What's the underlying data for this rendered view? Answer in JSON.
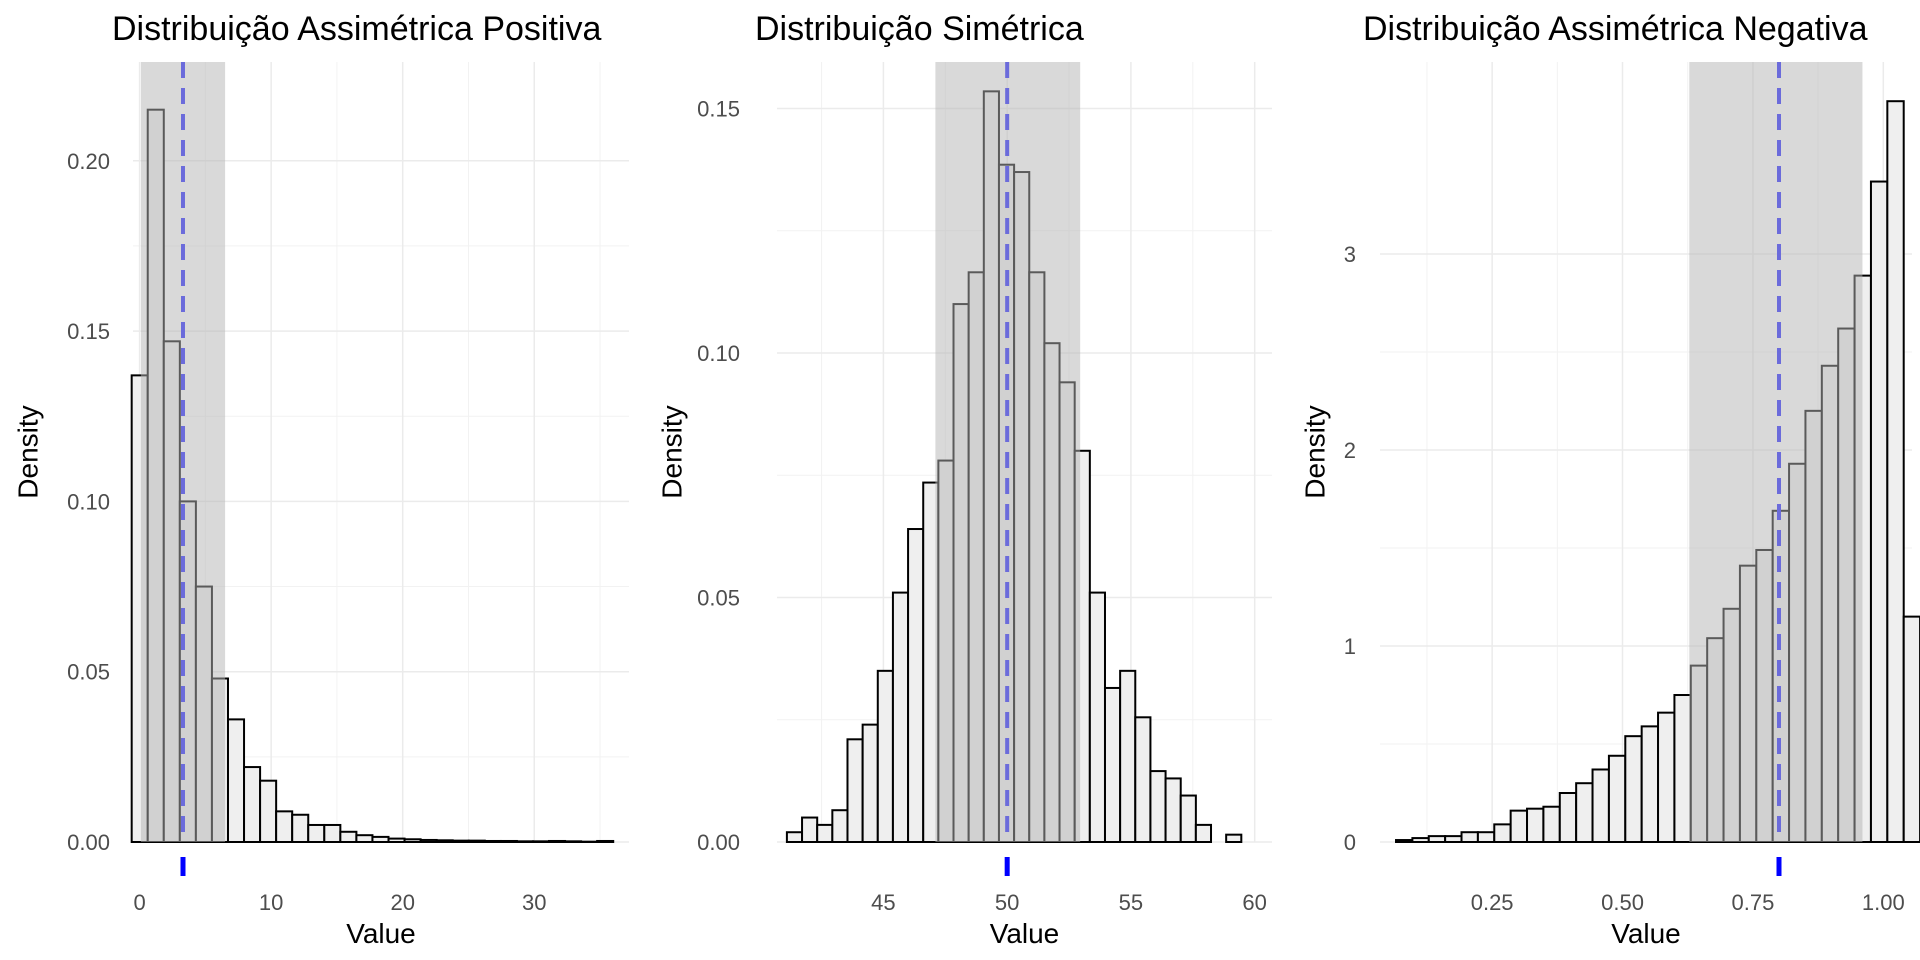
{
  "chart_data": [
    {
      "type": "bar",
      "title": "Distribuição Assimétrica Positiva",
      "xlabel": "Value",
      "ylabel": "Density",
      "xlim": [
        -0.5,
        37.2
      ],
      "ylim": [
        0,
        0.229
      ],
      "x_ticks": [
        {
          "v": 0,
          "label": "0"
        },
        {
          "v": 10,
          "label": "10"
        },
        {
          "v": 20,
          "label": "20"
        },
        {
          "v": 30,
          "label": "30"
        }
      ],
      "y_ticks": [
        {
          "v": 0,
          "label": "0.00"
        },
        {
          "v": 0.05,
          "label": "0.05"
        },
        {
          "v": 0.1,
          "label": "0.10"
        },
        {
          "v": 0.15,
          "label": "0.15"
        },
        {
          "v": 0.2,
          "label": "0.20"
        }
      ],
      "bin_start": -0.6,
      "bin_width": 1.22,
      "values": [
        0.137,
        0.215,
        0.147,
        0.1,
        0.075,
        0.048,
        0.036,
        0.022,
        0.018,
        0.009,
        0.008,
        0.005,
        0.005,
        0.003,
        0.002,
        0.0015,
        0.001,
        0.0008,
        0.0006,
        0.0005,
        0.0004,
        0.0004,
        0.0003,
        0.0003,
        0.0002,
        0.0002,
        0.0003,
        0.0002,
        0.0001,
        0.0003
      ],
      "shade_range": [
        0.1,
        6.5
      ],
      "mean_line": 3.3,
      "grid": true,
      "colors": {
        "bar_fill": "#efefef",
        "bar_stroke": "#000000",
        "shade": "#d9d9d9",
        "mean": "#6b6bdb",
        "rug": "#0000ff"
      }
    },
    {
      "type": "bar",
      "title": "Distribuição Simétrica",
      "xlabel": "Value",
      "ylabel": "Density",
      "xlim": [
        40.7,
        60.7
      ],
      "ylim": [
        0,
        0.1595
      ],
      "x_ticks": [
        {
          "v": 45,
          "label": "45"
        },
        {
          "v": 50,
          "label": "50"
        },
        {
          "v": 55,
          "label": "55"
        },
        {
          "v": 60,
          "label": "60"
        }
      ],
      "y_ticks": [
        {
          "v": 0,
          "label": "0.00"
        },
        {
          "v": 0.05,
          "label": "0.05"
        },
        {
          "v": 0.1,
          "label": "0.10"
        },
        {
          "v": 0.15,
          "label": "0.15"
        }
      ],
      "bin_start": 41.1,
      "bin_width": 0.612,
      "values": [
        0.002,
        0.005,
        0.0035,
        0.0065,
        0.021,
        0.024,
        0.035,
        0.051,
        0.064,
        0.0735,
        0.078,
        0.11,
        0.1165,
        0.1535,
        0.1385,
        0.137,
        0.1165,
        0.102,
        0.094,
        0.08,
        0.051,
        0.0315,
        0.035,
        0.0255,
        0.0145,
        0.013,
        0.0095,
        0.0035,
        0.0,
        0.0015
      ],
      "shade_range": [
        47.1,
        52.95
      ],
      "mean_line": 50.0,
      "grid": true,
      "colors": {
        "bar_fill": "#efefef",
        "bar_stroke": "#000000",
        "shade": "#d9d9d9",
        "mean": "#6b6bdb",
        "rug": "#0000ff"
      }
    },
    {
      "type": "bar",
      "title": "Distribuição Assimétrica Negativa",
      "xlabel": "Value",
      "ylabel": "Density",
      "xlim": [
        0.035,
        1.055
      ],
      "ylim": [
        0,
        3.98
      ],
      "x_ticks": [
        {
          "v": 0.25,
          "label": "0.25"
        },
        {
          "v": 0.5,
          "label": "0.50"
        },
        {
          "v": 0.75,
          "label": "0.75"
        },
        {
          "v": 1.0,
          "label": "1.00"
        }
      ],
      "y_ticks": [
        {
          "v": 0,
          "label": "0"
        },
        {
          "v": 1,
          "label": "1"
        },
        {
          "v": 2,
          "label": "2"
        },
        {
          "v": 3,
          "label": "3"
        }
      ],
      "bin_start": 0.0657,
      "bin_width": 0.0314,
      "values": [
        0.01,
        0.02,
        0.03,
        0.03,
        0.05,
        0.05,
        0.09,
        0.16,
        0.17,
        0.18,
        0.25,
        0.3,
        0.37,
        0.44,
        0.54,
        0.59,
        0.66,
        0.75,
        0.9,
        1.04,
        1.19,
        1.41,
        1.49,
        1.69,
        1.93,
        2.2,
        2.43,
        2.62,
        2.89,
        3.37,
        3.78,
        1.15
      ],
      "shade_range": [
        0.628,
        0.96
      ],
      "mean_line": 0.8,
      "grid": true,
      "colors": {
        "bar_fill": "#efefef",
        "bar_stroke": "#000000",
        "shade": "#d9d9d9",
        "mean": "#6b6bdb",
        "rug": "#0000ff"
      }
    }
  ]
}
